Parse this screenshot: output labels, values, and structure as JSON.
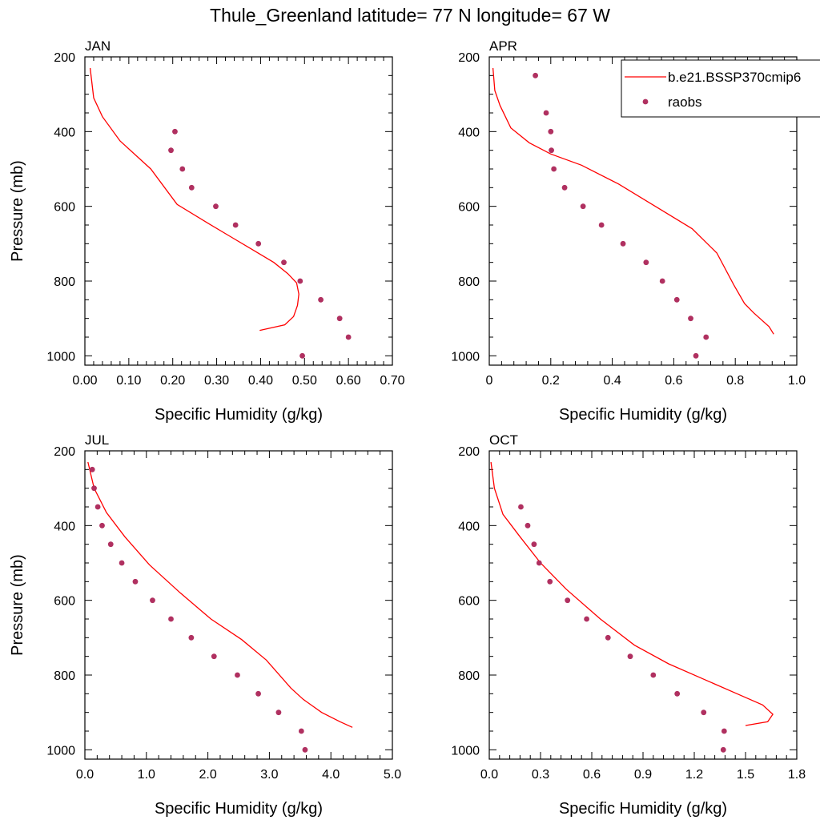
{
  "figure_title": "Thule_Greenland  latitude= 77 N longitude= 67 W",
  "colors": {
    "model_line": "#ff0000",
    "obs_marker": "#b03060",
    "axis": "#000000"
  },
  "legend": {
    "entries": [
      {
        "label": "b.e21.BSSP370cmip6",
        "kind": "line"
      },
      {
        "label": "raobs",
        "kind": "marker"
      }
    ]
  },
  "chart_data": [
    {
      "type": "line",
      "title": "JAN",
      "xlabel": "Specific Humidity (g/kg)",
      "ylabel": "Pressure (mb)",
      "xlim": [
        0,
        0.7
      ],
      "xticks": [
        "0.00",
        "0.10",
        "0.20",
        "0.30",
        "0.40",
        "0.50",
        "0.60",
        "0.70"
      ],
      "ylim": [
        200,
        1025
      ],
      "yticks": [
        "200",
        "400",
        "600",
        "800",
        "1000"
      ],
      "series": [
        {
          "name": "b.e21.BSSP370cmip6",
          "kind": "line",
          "x": [
            0.398,
            0.455,
            0.475,
            0.484,
            0.487,
            0.482,
            0.462,
            0.43,
            0.38,
            0.33,
            0.28,
            0.21,
            0.15,
            0.08,
            0.04,
            0.02,
            0.012
          ],
          "y": [
            932,
            917,
            895,
            865,
            835,
            805,
            780,
            750,
            715,
            680,
            645,
            595,
            500,
            425,
            360,
            310,
            230
          ]
        },
        {
          "name": "raobs",
          "kind": "marker",
          "x": [
            0.205,
            0.196,
            0.222,
            0.243,
            0.298,
            0.343,
            0.395,
            0.453,
            0.49,
            0.537,
            0.58,
            0.6,
            0.495
          ],
          "y": [
            400,
            450,
            500,
            550,
            600,
            650,
            700,
            750,
            800,
            850,
            900,
            950,
            1000
          ]
        }
      ]
    },
    {
      "type": "line",
      "title": "APR",
      "xlabel": "Specific Humidity (g/kg)",
      "ylabel": "",
      "xlim": [
        0,
        1.0
      ],
      "xticks": [
        "0",
        "0.2",
        "0.4",
        "0.6",
        "0.8",
        "1.0"
      ],
      "ylim": [
        200,
        1025
      ],
      "yticks": [
        "200",
        "400",
        "600",
        "800",
        "1000"
      ],
      "series": [
        {
          "name": "b.e21.BSSP370cmip6",
          "kind": "line",
          "x": [
            0.925,
            0.91,
            0.86,
            0.83,
            0.795,
            0.74,
            0.66,
            0.54,
            0.42,
            0.3,
            0.2,
            0.13,
            0.07,
            0.035,
            0.018,
            0.012
          ],
          "y": [
            942,
            922,
            885,
            860,
            810,
            725,
            660,
            600,
            540,
            490,
            460,
            430,
            390,
            330,
            290,
            230
          ]
        },
        {
          "name": "raobs",
          "kind": "marker",
          "x": [
            0.15,
            0.185,
            0.2,
            0.202,
            0.21,
            0.245,
            0.305,
            0.365,
            0.435,
            0.51,
            0.563,
            0.61,
            0.655,
            0.705,
            0.672
          ],
          "y": [
            250,
            350,
            400,
            450,
            500,
            550,
            600,
            650,
            700,
            750,
            800,
            850,
            900,
            950,
            1000
          ]
        }
      ]
    },
    {
      "type": "line",
      "title": "JUL",
      "xlabel": "Specific Humidity (g/kg)",
      "ylabel": "Pressure (mb)",
      "xlim": [
        0,
        5.0
      ],
      "xticks": [
        "0.0",
        "1.0",
        "2.0",
        "3.0",
        "4.0",
        "5.0"
      ],
      "ylim": [
        200,
        1025
      ],
      "yticks": [
        "200",
        "400",
        "600",
        "800",
        "1000"
      ],
      "series": [
        {
          "name": "b.e21.BSSP370cmip6",
          "kind": "line",
          "x": [
            4.35,
            4.15,
            3.85,
            3.55,
            3.35,
            2.95,
            2.55,
            2.05,
            1.55,
            1.05,
            0.65,
            0.35,
            0.15,
            0.05
          ],
          "y": [
            940,
            925,
            900,
            865,
            835,
            760,
            705,
            650,
            580,
            505,
            430,
            365,
            300,
            230
          ]
        },
        {
          "name": "raobs",
          "kind": "marker",
          "x": [
            0.12,
            0.15,
            0.21,
            0.28,
            0.42,
            0.6,
            0.82,
            1.1,
            1.4,
            1.73,
            2.1,
            2.48,
            2.82,
            3.15,
            3.52,
            3.58
          ],
          "y": [
            250,
            300,
            350,
            400,
            450,
            500,
            550,
            600,
            650,
            700,
            750,
            800,
            850,
            900,
            950,
            1000
          ]
        }
      ]
    },
    {
      "type": "line",
      "title": "OCT",
      "xlabel": "Specific Humidity (g/kg)",
      "ylabel": "",
      "xlim": [
        0,
        1.8
      ],
      "xticks": [
        "0.0",
        "0.3",
        "0.6",
        "0.9",
        "1.2",
        "1.5",
        "1.8"
      ],
      "ylim": [
        200,
        1025
      ],
      "yticks": [
        "200",
        "400",
        "600",
        "800",
        "1000"
      ],
      "series": [
        {
          "name": "b.e21.BSSP370cmip6",
          "kind": "line",
          "x": [
            1.5,
            1.63,
            1.66,
            1.6,
            1.45,
            1.25,
            1.05,
            0.85,
            0.65,
            0.45,
            0.3,
            0.18,
            0.08,
            0.03,
            0.01
          ],
          "y": [
            935,
            925,
            905,
            880,
            850,
            810,
            770,
            720,
            650,
            570,
            500,
            430,
            370,
            300,
            230
          ]
        },
        {
          "name": "raobs",
          "kind": "marker",
          "x": [
            0.185,
            0.225,
            0.262,
            0.292,
            0.355,
            0.458,
            0.57,
            0.695,
            0.825,
            0.96,
            1.1,
            1.255,
            1.375,
            1.37
          ],
          "y": [
            350,
            400,
            450,
            500,
            550,
            600,
            650,
            700,
            750,
            800,
            850,
            900,
            950,
            1000
          ]
        }
      ]
    }
  ]
}
